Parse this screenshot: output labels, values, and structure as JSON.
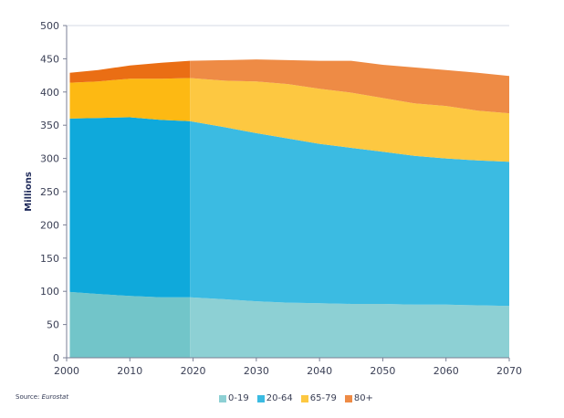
{
  "chart_data": {
    "type": "area",
    "stacked": true,
    "title": "",
    "xlabel": "",
    "ylabel": "Millions",
    "xlim": [
      2000,
      2070
    ],
    "ylim": [
      0,
      500
    ],
    "x_ticks": [
      "2000",
      "2010",
      "2020",
      "2030",
      "2040",
      "2050",
      "2060",
      "2070"
    ],
    "y_ticks": [
      "0",
      "50",
      "100",
      "150",
      "200",
      "250",
      "300",
      "350",
      "400",
      "450",
      "500"
    ],
    "grid": "horizontal-top",
    "projection_start": 2019.5,
    "x": [
      2000.5,
      2005,
      2010,
      2015,
      2019.5,
      2025,
      2030,
      2035,
      2040,
      2045,
      2050,
      2055,
      2060,
      2065,
      2070
    ],
    "series": [
      {
        "name": "0-19",
        "color_historical": "#72c5c9",
        "color_projected": "#8dd0d4",
        "values": [
          99,
          96,
          93,
          91,
          91,
          88,
          85,
          83,
          82,
          81,
          81,
          80,
          80,
          79,
          78
        ]
      },
      {
        "name": "20-64",
        "color_historical": "#0fa9db",
        "color_projected": "#3bbbe2",
        "values": [
          261,
          265,
          269,
          267,
          265,
          259,
          253,
          247,
          240,
          235,
          229,
          224,
          220,
          218,
          217
        ]
      },
      {
        "name": "65-79",
        "color_historical": "#fdb913",
        "color_projected": "#fdc841",
        "values": [
          54,
          55,
          58,
          62,
          65,
          70,
          78,
          82,
          83,
          83,
          81,
          79,
          79,
          75,
          73
        ]
      },
      {
        "name": "80+",
        "color_historical": "#ea6e14",
        "color_projected": "#ee8b45",
        "values": [
          15,
          17,
          20,
          24,
          26,
          31,
          33,
          36,
          42,
          48,
          50,
          54,
          54,
          57,
          56
        ]
      }
    ],
    "legend": {
      "placement": "bottom-center",
      "entries": [
        {
          "label": "0-19",
          "color": "#8dd0d4"
        },
        {
          "label": "20-64",
          "color": "#3bbbe2"
        },
        {
          "label": "65-79",
          "color": "#fdc841"
        },
        {
          "label": "80+",
          "color": "#ee8b45"
        }
      ]
    },
    "source": {
      "prefix": "Source:",
      "name": "Eurostat"
    }
  }
}
